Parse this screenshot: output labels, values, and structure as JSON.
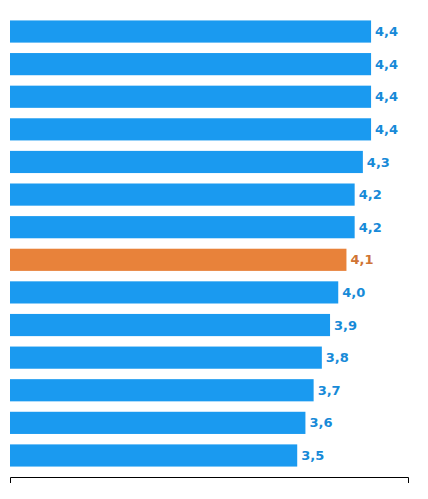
{
  "chart_data": {
    "type": "bar",
    "orientation": "horizontal",
    "categories": [
      null,
      null,
      null,
      null,
      null,
      null,
      null,
      null,
      null,
      null,
      null,
      null,
      null,
      null
    ],
    "values": [
      4.4,
      4.4,
      4.4,
      4.4,
      4.3,
      4.2,
      4.2,
      4.1,
      4.0,
      3.9,
      3.8,
      3.7,
      3.6,
      3.5
    ],
    "value_labels": [
      "4,4",
      "4,4",
      "4,4",
      "4,4",
      "4,3",
      "4,2",
      "4,2",
      "4,1",
      "4,0",
      "3,9",
      "3,8",
      "3,7",
      "3,6",
      "3,5"
    ],
    "colors": [
      "#1a9af0",
      "#1a9af0",
      "#1a9af0",
      "#1a9af0",
      "#1a9af0",
      "#1a9af0",
      "#1a9af0",
      "#e8823a",
      "#1a9af0",
      "#1a9af0",
      "#1a9af0",
      "#1a9af0",
      "#1a9af0",
      "#1a9af0"
    ],
    "xlim": [
      0,
      4.85
    ],
    "data_labels": true,
    "tick_labels": false
  }
}
